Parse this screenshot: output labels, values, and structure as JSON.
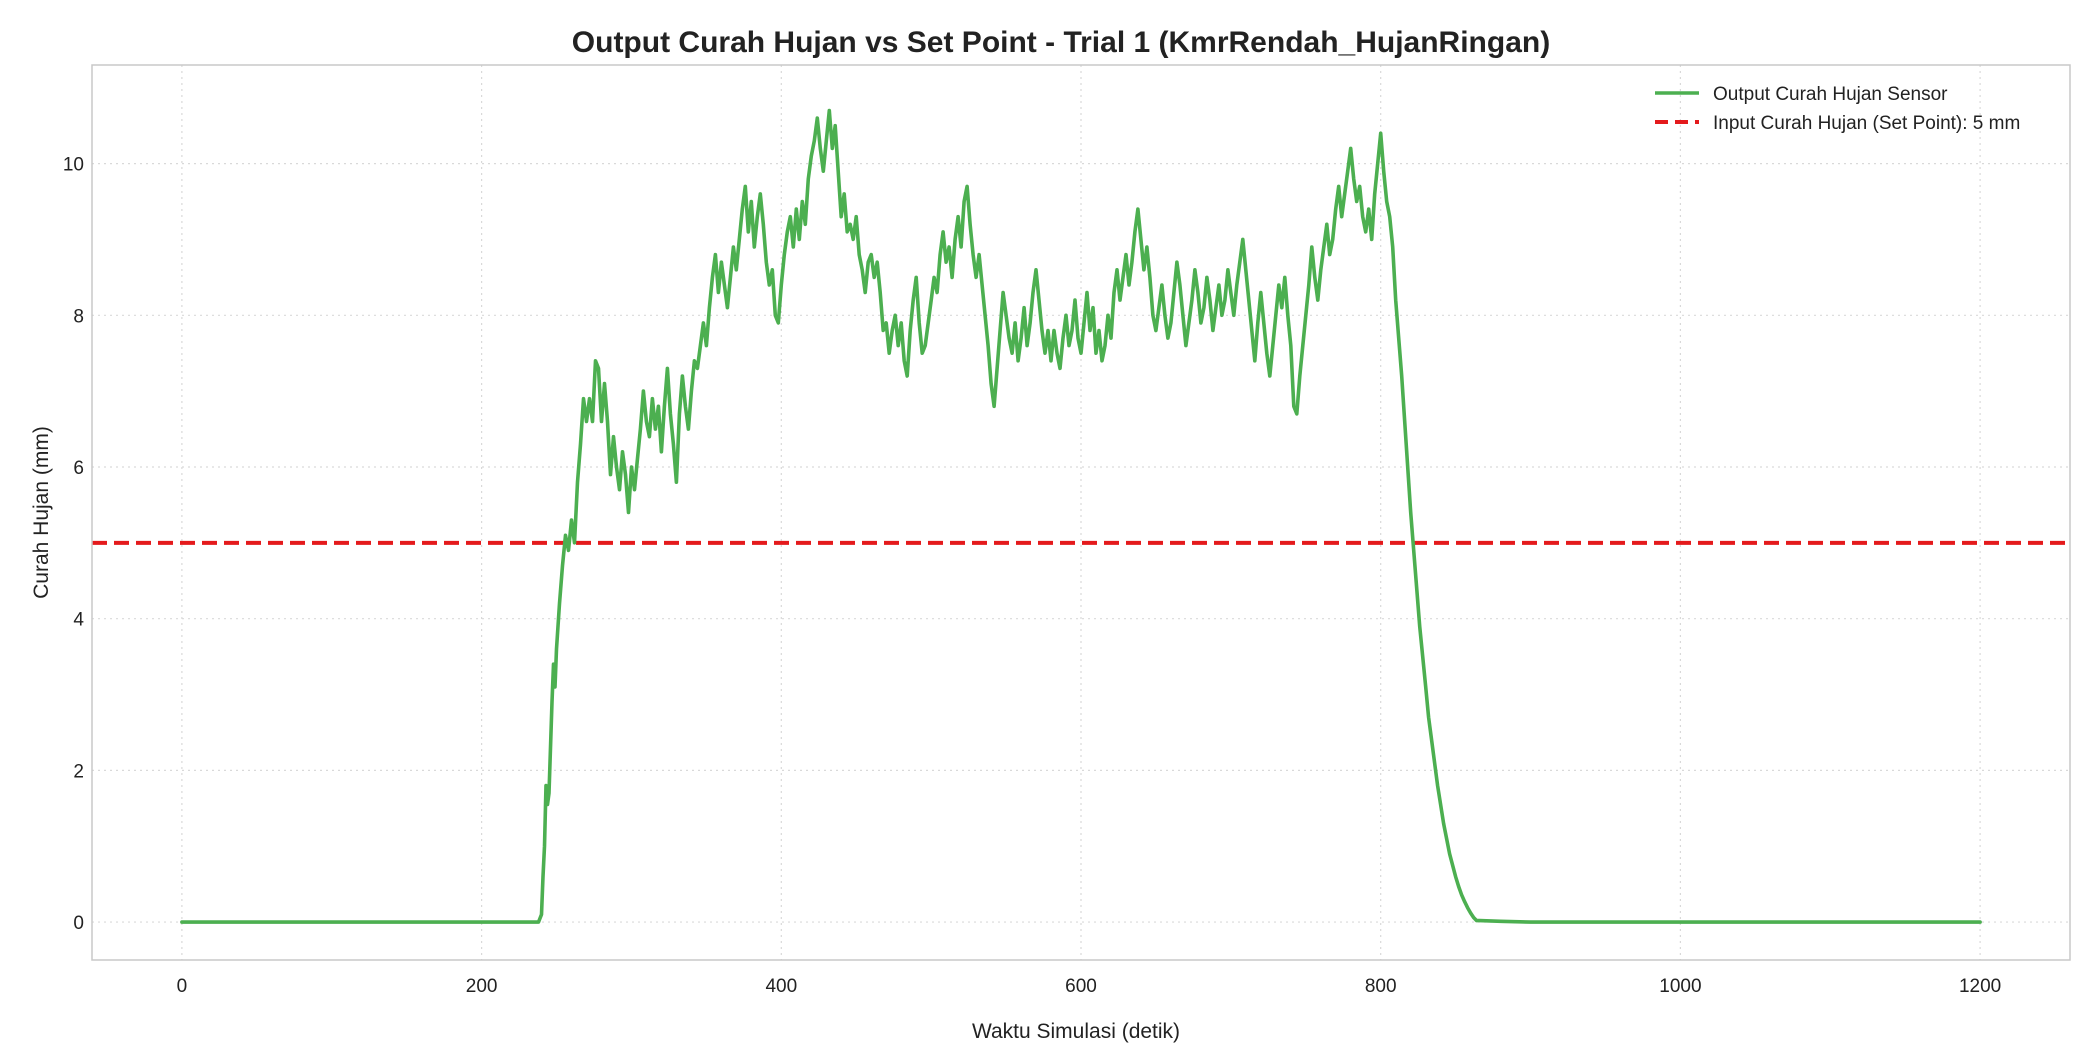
{
  "chart_data": {
    "type": "line",
    "title": "Output Curah Hujan vs Set Point - Trial 1 (KmrRendah_HujanRingan)",
    "xlabel": "Waktu Simulasi (detik)",
    "ylabel": "Curah Hujan (mm)",
    "xlim": [
      -60,
      1260
    ],
    "ylim": [
      -0.5,
      11.3
    ],
    "x_ticks": [
      0,
      200,
      400,
      600,
      800,
      1000,
      1200
    ],
    "y_ticks": [
      0,
      2,
      4,
      6,
      8,
      10
    ],
    "grid": true,
    "legend_position": "top-right",
    "series": [
      {
        "name": "Output Curah Hujan Sensor",
        "color": "#4caf50",
        "style": "solid",
        "points": [
          [
            0,
            0
          ],
          [
            100,
            0
          ],
          [
            200,
            0
          ],
          [
            238,
            0
          ],
          [
            240,
            0.1
          ],
          [
            241,
            0.6
          ],
          [
            242,
            1.0
          ],
          [
            243,
            1.8
          ],
          [
            244,
            1.55
          ],
          [
            245,
            1.7
          ],
          [
            246,
            2.3
          ],
          [
            247,
            2.9
          ],
          [
            248,
            3.4
          ],
          [
            249,
            3.1
          ],
          [
            250,
            3.6
          ],
          [
            252,
            4.2
          ],
          [
            254,
            4.7
          ],
          [
            256,
            5.1
          ],
          [
            258,
            4.9
          ],
          [
            260,
            5.3
          ],
          [
            262,
            5.0
          ],
          [
            264,
            5.8
          ],
          [
            266,
            6.3
          ],
          [
            268,
            6.9
          ],
          [
            270,
            6.6
          ],
          [
            272,
            6.9
          ],
          [
            274,
            6.6
          ],
          [
            276,
            7.4
          ],
          [
            278,
            7.3
          ],
          [
            280,
            6.6
          ],
          [
            282,
            7.1
          ],
          [
            284,
            6.6
          ],
          [
            286,
            5.9
          ],
          [
            288,
            6.4
          ],
          [
            290,
            6.0
          ],
          [
            292,
            5.7
          ],
          [
            294,
            6.2
          ],
          [
            296,
            5.9
          ],
          [
            298,
            5.4
          ],
          [
            300,
            6.0
          ],
          [
            302,
            5.7
          ],
          [
            304,
            6.1
          ],
          [
            306,
            6.5
          ],
          [
            308,
            7.0
          ],
          [
            310,
            6.6
          ],
          [
            312,
            6.4
          ],
          [
            314,
            6.9
          ],
          [
            316,
            6.5
          ],
          [
            318,
            6.8
          ],
          [
            320,
            6.2
          ],
          [
            322,
            6.8
          ],
          [
            324,
            7.3
          ],
          [
            326,
            6.7
          ],
          [
            328,
            6.3
          ],
          [
            330,
            5.8
          ],
          [
            332,
            6.7
          ],
          [
            334,
            7.2
          ],
          [
            336,
            6.8
          ],
          [
            338,
            6.5
          ],
          [
            340,
            7.0
          ],
          [
            342,
            7.4
          ],
          [
            344,
            7.3
          ],
          [
            346,
            7.6
          ],
          [
            348,
            7.9
          ],
          [
            350,
            7.6
          ],
          [
            352,
            8.1
          ],
          [
            354,
            8.5
          ],
          [
            356,
            8.8
          ],
          [
            358,
            8.3
          ],
          [
            360,
            8.7
          ],
          [
            362,
            8.4
          ],
          [
            364,
            8.1
          ],
          [
            366,
            8.5
          ],
          [
            368,
            8.9
          ],
          [
            370,
            8.6
          ],
          [
            372,
            9.0
          ],
          [
            374,
            9.4
          ],
          [
            376,
            9.7
          ],
          [
            378,
            9.1
          ],
          [
            380,
            9.5
          ],
          [
            382,
            8.9
          ],
          [
            384,
            9.3
          ],
          [
            386,
            9.6
          ],
          [
            388,
            9.2
          ],
          [
            390,
            8.7
          ],
          [
            392,
            8.4
          ],
          [
            394,
            8.6
          ],
          [
            396,
            8.0
          ],
          [
            398,
            7.9
          ],
          [
            400,
            8.4
          ],
          [
            402,
            8.8
          ],
          [
            404,
            9.1
          ],
          [
            406,
            9.3
          ],
          [
            408,
            8.9
          ],
          [
            410,
            9.4
          ],
          [
            412,
            9.0
          ],
          [
            414,
            9.5
          ],
          [
            416,
            9.2
          ],
          [
            418,
            9.8
          ],
          [
            420,
            10.1
          ],
          [
            422,
            10.3
          ],
          [
            424,
            10.6
          ],
          [
            426,
            10.2
          ],
          [
            428,
            9.9
          ],
          [
            430,
            10.3
          ],
          [
            432,
            10.7
          ],
          [
            434,
            10.2
          ],
          [
            436,
            10.5
          ],
          [
            438,
            9.9
          ],
          [
            440,
            9.3
          ],
          [
            442,
            9.6
          ],
          [
            444,
            9.1
          ],
          [
            446,
            9.2
          ],
          [
            448,
            9.0
          ],
          [
            450,
            9.3
          ],
          [
            452,
            8.8
          ],
          [
            454,
            8.6
          ],
          [
            456,
            8.3
          ],
          [
            458,
            8.7
          ],
          [
            460,
            8.8
          ],
          [
            462,
            8.5
          ],
          [
            464,
            8.7
          ],
          [
            466,
            8.3
          ],
          [
            468,
            7.8
          ],
          [
            470,
            7.9
          ],
          [
            472,
            7.5
          ],
          [
            474,
            7.8
          ],
          [
            476,
            8.0
          ],
          [
            478,
            7.6
          ],
          [
            480,
            7.9
          ],
          [
            482,
            7.4
          ],
          [
            484,
            7.2
          ],
          [
            486,
            7.8
          ],
          [
            488,
            8.2
          ],
          [
            490,
            8.5
          ],
          [
            492,
            7.9
          ],
          [
            494,
            7.5
          ],
          [
            496,
            7.6
          ],
          [
            498,
            7.9
          ],
          [
            500,
            8.2
          ],
          [
            502,
            8.5
          ],
          [
            504,
            8.3
          ],
          [
            506,
            8.8
          ],
          [
            508,
            9.1
          ],
          [
            510,
            8.7
          ],
          [
            512,
            8.9
          ],
          [
            514,
            8.5
          ],
          [
            516,
            9.0
          ],
          [
            518,
            9.3
          ],
          [
            520,
            8.9
          ],
          [
            522,
            9.5
          ],
          [
            524,
            9.7
          ],
          [
            526,
            9.2
          ],
          [
            528,
            8.8
          ],
          [
            530,
            8.5
          ],
          [
            532,
            8.8
          ],
          [
            534,
            8.4
          ],
          [
            536,
            8.0
          ],
          [
            538,
            7.6
          ],
          [
            540,
            7.1
          ],
          [
            542,
            6.8
          ],
          [
            544,
            7.3
          ],
          [
            546,
            7.8
          ],
          [
            548,
            8.3
          ],
          [
            550,
            8.0
          ],
          [
            552,
            7.7
          ],
          [
            554,
            7.5
          ],
          [
            556,
            7.9
          ],
          [
            558,
            7.4
          ],
          [
            560,
            7.7
          ],
          [
            562,
            8.1
          ],
          [
            564,
            7.6
          ],
          [
            566,
            7.9
          ],
          [
            568,
            8.3
          ],
          [
            570,
            8.6
          ],
          [
            572,
            8.2
          ],
          [
            574,
            7.8
          ],
          [
            576,
            7.5
          ],
          [
            578,
            7.8
          ],
          [
            580,
            7.4
          ],
          [
            582,
            7.8
          ],
          [
            584,
            7.5
          ],
          [
            586,
            7.3
          ],
          [
            588,
            7.7
          ],
          [
            590,
            8.0
          ],
          [
            592,
            7.6
          ],
          [
            594,
            7.8
          ],
          [
            596,
            8.2
          ],
          [
            598,
            7.7
          ],
          [
            600,
            7.5
          ],
          [
            602,
            7.9
          ],
          [
            604,
            8.3
          ],
          [
            606,
            7.8
          ],
          [
            608,
            8.1
          ],
          [
            610,
            7.5
          ],
          [
            612,
            7.8
          ],
          [
            614,
            7.4
          ],
          [
            616,
            7.6
          ],
          [
            618,
            8.0
          ],
          [
            620,
            7.7
          ],
          [
            622,
            8.3
          ],
          [
            624,
            8.6
          ],
          [
            626,
            8.2
          ],
          [
            628,
            8.5
          ],
          [
            630,
            8.8
          ],
          [
            632,
            8.4
          ],
          [
            634,
            8.7
          ],
          [
            636,
            9.1
          ],
          [
            638,
            9.4
          ],
          [
            640,
            9.0
          ],
          [
            642,
            8.6
          ],
          [
            644,
            8.9
          ],
          [
            646,
            8.5
          ],
          [
            648,
            8.0
          ],
          [
            650,
            7.8
          ],
          [
            652,
            8.1
          ],
          [
            654,
            8.4
          ],
          [
            656,
            8.0
          ],
          [
            658,
            7.7
          ],
          [
            660,
            7.9
          ],
          [
            662,
            8.3
          ],
          [
            664,
            8.7
          ],
          [
            666,
            8.4
          ],
          [
            668,
            8.0
          ],
          [
            670,
            7.6
          ],
          [
            672,
            7.9
          ],
          [
            674,
            8.2
          ],
          [
            676,
            8.6
          ],
          [
            678,
            8.3
          ],
          [
            680,
            7.9
          ],
          [
            682,
            8.1
          ],
          [
            684,
            8.5
          ],
          [
            686,
            8.2
          ],
          [
            688,
            7.8
          ],
          [
            690,
            8.1
          ],
          [
            692,
            8.4
          ],
          [
            694,
            8.0
          ],
          [
            696,
            8.2
          ],
          [
            698,
            8.6
          ],
          [
            700,
            8.3
          ],
          [
            702,
            8.0
          ],
          [
            704,
            8.4
          ],
          [
            706,
            8.7
          ],
          [
            708,
            9.0
          ],
          [
            710,
            8.6
          ],
          [
            712,
            8.2
          ],
          [
            714,
            7.8
          ],
          [
            716,
            7.4
          ],
          [
            718,
            7.9
          ],
          [
            720,
            8.3
          ],
          [
            722,
            7.9
          ],
          [
            724,
            7.5
          ],
          [
            726,
            7.2
          ],
          [
            728,
            7.6
          ],
          [
            730,
            8.0
          ],
          [
            732,
            8.4
          ],
          [
            734,
            8.1
          ],
          [
            736,
            8.5
          ],
          [
            738,
            8.0
          ],
          [
            740,
            7.6
          ],
          [
            742,
            6.8
          ],
          [
            744,
            6.7
          ],
          [
            746,
            7.2
          ],
          [
            748,
            7.6
          ],
          [
            750,
            8.0
          ],
          [
            752,
            8.4
          ],
          [
            754,
            8.9
          ],
          [
            756,
            8.5
          ],
          [
            758,
            8.2
          ],
          [
            760,
            8.6
          ],
          [
            762,
            8.9
          ],
          [
            764,
            9.2
          ],
          [
            766,
            8.8
          ],
          [
            768,
            9.0
          ],
          [
            770,
            9.4
          ],
          [
            772,
            9.7
          ],
          [
            774,
            9.3
          ],
          [
            776,
            9.6
          ],
          [
            778,
            9.9
          ],
          [
            780,
            10.2
          ],
          [
            782,
            9.8
          ],
          [
            784,
            9.5
          ],
          [
            786,
            9.7
          ],
          [
            788,
            9.3
          ],
          [
            790,
            9.1
          ],
          [
            792,
            9.4
          ],
          [
            794,
            9.0
          ],
          [
            796,
            9.6
          ],
          [
            798,
            10.0
          ],
          [
            800,
            10.4
          ],
          [
            802,
            9.9
          ],
          [
            804,
            9.5
          ],
          [
            806,
            9.3
          ],
          [
            808,
            8.9
          ],
          [
            810,
            8.2
          ],
          [
            812,
            7.7
          ],
          [
            814,
            7.2
          ],
          [
            816,
            6.6
          ],
          [
            818,
            6.0
          ],
          [
            820,
            5.4
          ],
          [
            822,
            4.9
          ],
          [
            824,
            4.4
          ],
          [
            826,
            3.9
          ],
          [
            828,
            3.5
          ],
          [
            830,
            3.1
          ],
          [
            832,
            2.7
          ],
          [
            834,
            2.4
          ],
          [
            836,
            2.1
          ],
          [
            838,
            1.8
          ],
          [
            840,
            1.55
          ],
          [
            842,
            1.3
          ],
          [
            844,
            1.1
          ],
          [
            846,
            0.9
          ],
          [
            848,
            0.75
          ],
          [
            850,
            0.6
          ],
          [
            852,
            0.47
          ],
          [
            854,
            0.36
          ],
          [
            856,
            0.27
          ],
          [
            858,
            0.19
          ],
          [
            860,
            0.12
          ],
          [
            862,
            0.06
          ],
          [
            864,
            0.02
          ],
          [
            866,
            0.02
          ],
          [
            880,
            0.01
          ],
          [
            900,
            0.0
          ],
          [
            1000,
            0
          ],
          [
            1100,
            0
          ],
          [
            1200,
            0
          ]
        ]
      },
      {
        "name": "Input Curah Hujan (Set Point): 5 mm",
        "color": "#e41a1c",
        "style": "dashed",
        "constant_y": 5
      }
    ]
  }
}
